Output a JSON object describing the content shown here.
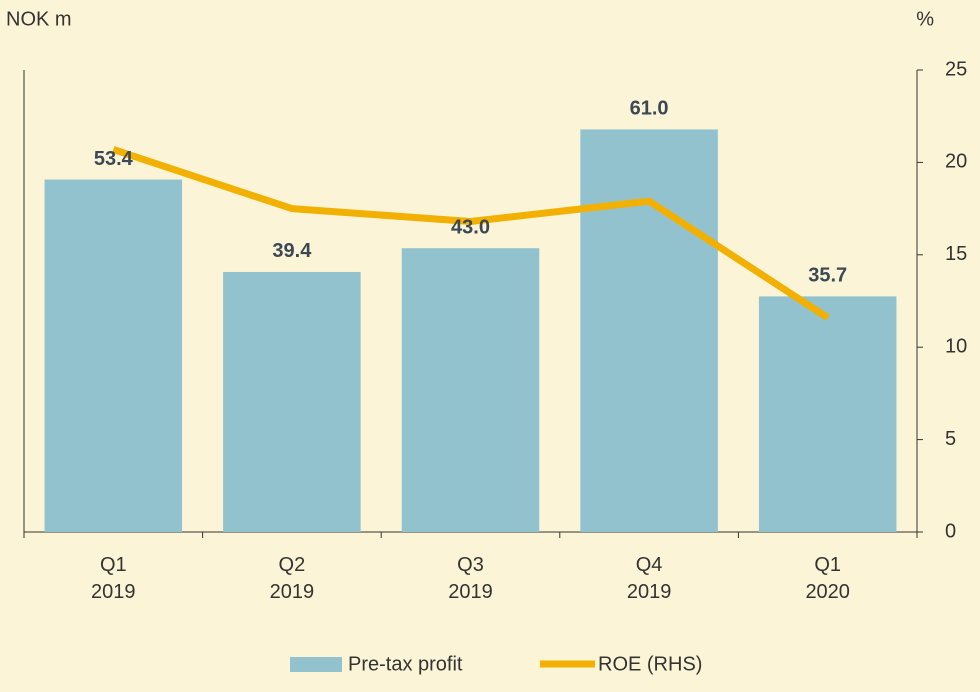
{
  "chart_data": {
    "type": "bar",
    "y_label": "NOK m",
    "y2_label": "%",
    "categories": [
      "Q1\n2019",
      "Q2\n2019",
      "Q3\n2019",
      "Q4\n2019",
      "Q1\n2020"
    ],
    "ylim": [
      0,
      70
    ],
    "y2lim": [
      0,
      25
    ],
    "y2ticks": [
      0,
      5,
      10,
      15,
      20,
      25
    ],
    "series": [
      {
        "name": "Pre-tax profit",
        "type": "bar",
        "color": "#93c2cf",
        "values": [
          53.4,
          39.4,
          43.0,
          61.0,
          35.7
        ],
        "value_labels": [
          "53.4",
          "39.4",
          "43.0",
          "61.0",
          "35.7"
        ]
      },
      {
        "name": "ROE (RHS)",
        "type": "line",
        "axis": "y2",
        "color": "#f2b000",
        "values": [
          20.7,
          17.5,
          16.8,
          17.9,
          11.6
        ]
      }
    ]
  }
}
